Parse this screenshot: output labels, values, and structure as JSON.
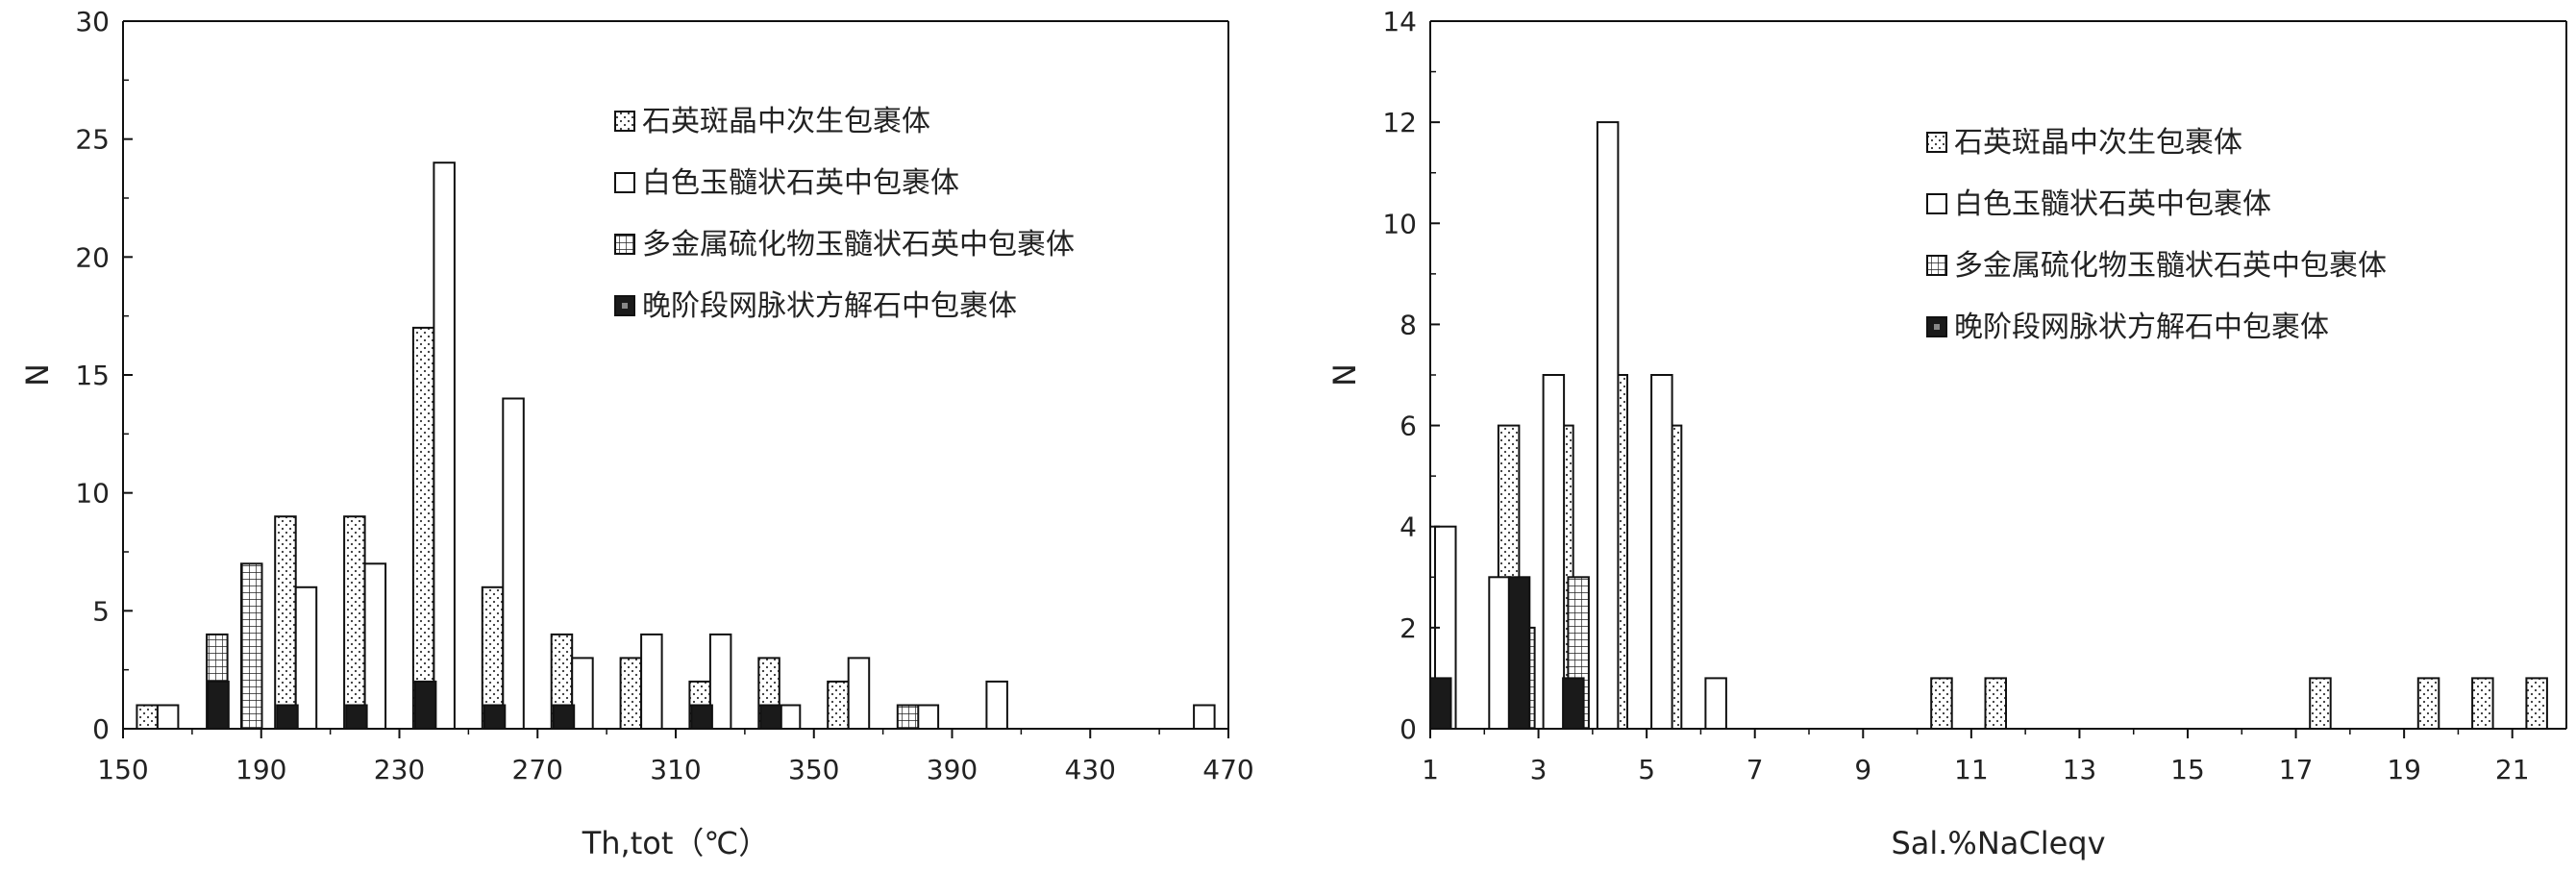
{
  "chart_data": [
    {
      "type": "bar",
      "xlabel": "Th,tot（℃）",
      "ylabel": "N",
      "xlim": [
        150,
        470
      ],
      "ylim": [
        0,
        30
      ],
      "x_ticks": [
        "150",
        "190",
        "230",
        "270",
        "310",
        "350",
        "390",
        "430",
        "470"
      ],
      "y_ticks": [
        "0",
        "5",
        "10",
        "15",
        "20",
        "25",
        "30"
      ],
      "bin_width": 20,
      "grid": false,
      "legend_position": "top-right",
      "series": [
        {
          "name": "石英斑晶中次生包裹体",
          "pattern": "dots",
          "values": [
            [
              160,
              1
            ],
            [
              200,
              9
            ],
            [
              220,
              9
            ],
            [
              240,
              17
            ],
            [
              260,
              6
            ],
            [
              280,
              4
            ],
            [
              300,
              3
            ],
            [
              320,
              2
            ],
            [
              340,
              3
            ],
            [
              360,
              2
            ]
          ]
        },
        {
          "name": "白色玉髓状石英中包裹体",
          "pattern": "open",
          "values": [
            [
              160,
              1
            ],
            [
              200,
              6
            ],
            [
              220,
              7
            ],
            [
              240,
              24
            ],
            [
              260,
              14
            ],
            [
              280,
              3
            ],
            [
              300,
              4
            ],
            [
              320,
              4
            ],
            [
              340,
              1
            ],
            [
              360,
              3
            ],
            [
              380,
              1
            ],
            [
              400,
              2
            ],
            [
              460,
              1
            ]
          ]
        },
        {
          "name": "多金属硫化物玉髓状石英中包裹体",
          "pattern": "grid",
          "values": [
            [
              180,
              4
            ],
            [
              190,
              7
            ],
            [
              380,
              1
            ]
          ]
        },
        {
          "name": "晚阶段网脉状方解石中包裹体",
          "pattern": "solid",
          "values": [
            [
              180,
              2
            ],
            [
              200,
              1
            ],
            [
              220,
              1
            ],
            [
              240,
              2
            ],
            [
              260,
              1
            ],
            [
              280,
              1
            ],
            [
              320,
              1
            ],
            [
              340,
              1
            ]
          ]
        }
      ]
    },
    {
      "type": "bar",
      "xlabel": "Sal.%NaCleqv",
      "ylabel": "N",
      "xlim": [
        1,
        22
      ],
      "ylim": [
        0,
        14
      ],
      "x_ticks": [
        "1",
        "3",
        "5",
        "7",
        "9",
        "11",
        "13",
        "15",
        "17",
        "19",
        "21"
      ],
      "y_ticks": [
        "0",
        "2",
        "4",
        "6",
        "8",
        "10",
        "12",
        "14"
      ],
      "bin_width": 1,
      "grid": false,
      "legend_position": "top-right",
      "series": [
        {
          "name": "石英斑晶中次生包裹体",
          "pattern": "dots",
          "values": [
            [
              2.5,
              6
            ],
            [
              3.5,
              6
            ],
            [
              4.5,
              7
            ],
            [
              5.5,
              6
            ],
            [
              10.5,
              1
            ],
            [
              11.5,
              1
            ],
            [
              17.5,
              1
            ],
            [
              19.5,
              1
            ],
            [
              20.5,
              1
            ],
            [
              21.5,
              1
            ]
          ]
        },
        {
          "name": "白色玉髓状石英中包裹体",
          "pattern": "open",
          "values": [
            [
              1.5,
              4
            ],
            [
              2.5,
              3
            ],
            [
              3.5,
              7
            ],
            [
              4.5,
              12
            ],
            [
              5.5,
              7
            ],
            [
              6.5,
              1
            ]
          ]
        },
        {
          "name": "多金属硫化物玉髓状石英中包裹体",
          "pattern": "grid",
          "values": [
            [
              2.5,
              2
            ],
            [
              3.5,
              3
            ]
          ]
        },
        {
          "name": "晚阶段网脉状方解石中包裹体",
          "pattern": "solid",
          "values": [
            [
              1.5,
              1
            ],
            [
              2.5,
              3
            ],
            [
              3.5,
              1
            ]
          ]
        }
      ]
    }
  ]
}
